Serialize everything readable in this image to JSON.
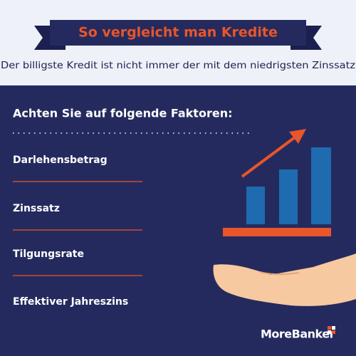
{
  "header": {
    "title": "So vergleicht man Kredite",
    "subtitle": "Der billigste Kredit ist nicht immer der mit dem niedrigsten Zinssatz"
  },
  "content": {
    "heading": "Achten Sie auf folgende Faktoren:",
    "items": [
      "Darlehensbetrag",
      "Zinssatz",
      "Tilgungsrate",
      "Effektiver Jahreszins"
    ]
  },
  "footer": {
    "brand": "MoreBanker"
  }
}
